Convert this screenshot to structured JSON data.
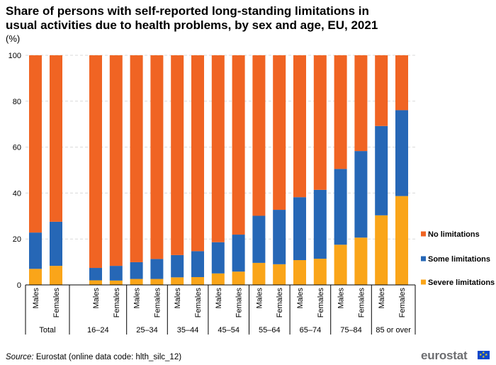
{
  "title": "Share of persons with self-reported long-standing limitations in usual activities due to health problems, by sex and age, EU, 2021",
  "subtitle": "(%)",
  "source_label": "Source:",
  "source_text": " Eurostat (online data code: hlth_silc_12)",
  "logo_text": "eurostat",
  "colors": {
    "no_limitations": "#f06423",
    "some_limitations": "#2667b6",
    "severe_limitations": "#faa519",
    "grid": "#d9d9d9",
    "axis": "#000000"
  },
  "chart_data": {
    "type": "bar",
    "stacked": true,
    "ylim": [
      0,
      100
    ],
    "yticks": [
      0,
      20,
      40,
      60,
      80,
      100
    ],
    "grid": true,
    "legend_position": "right",
    "groups": [
      {
        "label": "Total",
        "categories": [
          "Males",
          "Females"
        ]
      },
      {
        "label": "16–24",
        "categories": [
          "Males",
          "Females"
        ]
      },
      {
        "label": "25–34",
        "categories": [
          "Males",
          "Females"
        ]
      },
      {
        "label": "35–44",
        "categories": [
          "Males",
          "Females"
        ]
      },
      {
        "label": "45–54",
        "categories": [
          "Males",
          "Females"
        ]
      },
      {
        "label": "55–64",
        "categories": [
          "Males",
          "Females"
        ]
      },
      {
        "label": "65–74",
        "categories": [
          "Males",
          "Females"
        ]
      },
      {
        "label": "75–84",
        "categories": [
          "Males",
          "Females"
        ]
      },
      {
        "label": "85 or over",
        "categories": [
          "Males",
          "Females"
        ]
      }
    ],
    "series": [
      {
        "name": "Severe limitations",
        "color_key": "severe_limitations",
        "values": [
          7.0,
          8.3,
          2.0,
          1.9,
          2.6,
          2.6,
          3.3,
          3.4,
          5.0,
          5.8,
          9.6,
          9.0,
          10.8,
          11.4,
          17.5,
          20.6,
          30.3,
          38.7
        ]
      },
      {
        "name": "Some limitations",
        "color_key": "some_limitations",
        "values": [
          15.8,
          19.2,
          5.4,
          6.4,
          7.3,
          8.7,
          9.7,
          11.3,
          13.6,
          16.1,
          20.5,
          23.7,
          27.4,
          30.0,
          33.0,
          37.7,
          38.9,
          37.4
        ]
      },
      {
        "name": "No limitations",
        "color_key": "no_limitations",
        "values": [
          77.2,
          72.5,
          92.6,
          91.7,
          90.1,
          88.7,
          87.0,
          85.3,
          81.4,
          78.1,
          69.9,
          67.3,
          61.8,
          58.6,
          49.5,
          41.7,
          30.8,
          23.9
        ]
      }
    ],
    "legend_order": [
      "No limitations",
      "Some limitations",
      "Severe limitations"
    ]
  }
}
